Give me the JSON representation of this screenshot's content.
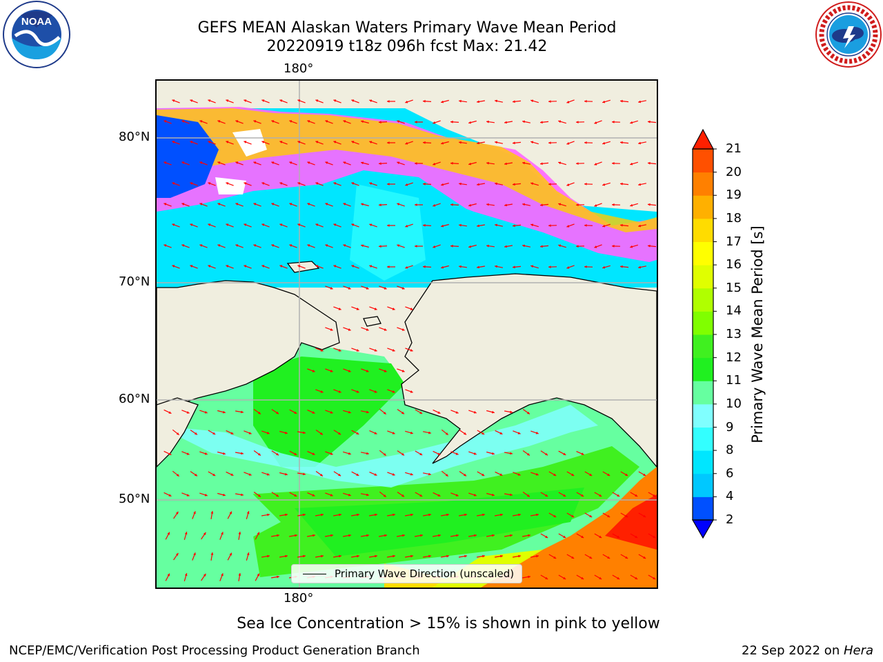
{
  "title": {
    "line1": "GEFS MEAN Alaskan Waters Primary Wave Mean Period",
    "line2": "20220919 t18z 096h fcst   Max: 21.42"
  },
  "logos": {
    "left": {
      "icon": "noaa-logo",
      "text": "NOAA",
      "ring_text": "NATIONAL OCEANIC AND ATMOSPHERIC ADMINISTRATION · U.S. DEPARTMENT OF COMMERCE"
    },
    "right": {
      "icon": "nws-logo",
      "ring_text": "NATIONAL WEATHER SERVICE"
    }
  },
  "map": {
    "lon_top_label": "180°",
    "lon_bottom_label": "180°",
    "lat_labels": [
      "80°N",
      "70°N",
      "60°N",
      "50°N"
    ],
    "legend_label": "Primary Wave Direction (unscaled)",
    "arrow_color": "#ff0000",
    "land_color": "#f0eedf"
  },
  "colorbar": {
    "title": "Primary Wave Mean Period [s]",
    "ticks": [
      "21",
      "20",
      "19",
      "18",
      "17",
      "16",
      "15",
      "14",
      "13",
      "12",
      "11",
      "10",
      "9",
      "8",
      "6",
      "4",
      "2"
    ],
    "levels": [
      2,
      4,
      6,
      8,
      9,
      10,
      11,
      12,
      13,
      14,
      15,
      16,
      17,
      18,
      19,
      20,
      21
    ],
    "colors": [
      "#0050ff",
      "#00c8ff",
      "#00e6ff",
      "#33ffff",
      "#80ffff",
      "#66ffa0",
      "#20f020",
      "#40f020",
      "#80ff00",
      "#b0ff00",
      "#e0ff00",
      "#ffff00",
      "#ffdc00",
      "#ffb000",
      "#ff8000",
      "#ff5000",
      "#ff2000"
    ],
    "extend": "both"
  },
  "caption": "Sea Ice Concentration > 15% is shown in pink to yellow",
  "footer": {
    "left": "NCEP/EMC/Verification Post Processing Product Generation Branch",
    "right_date": "22 Sep 2022 on ",
    "right_machine": "Hera"
  }
}
